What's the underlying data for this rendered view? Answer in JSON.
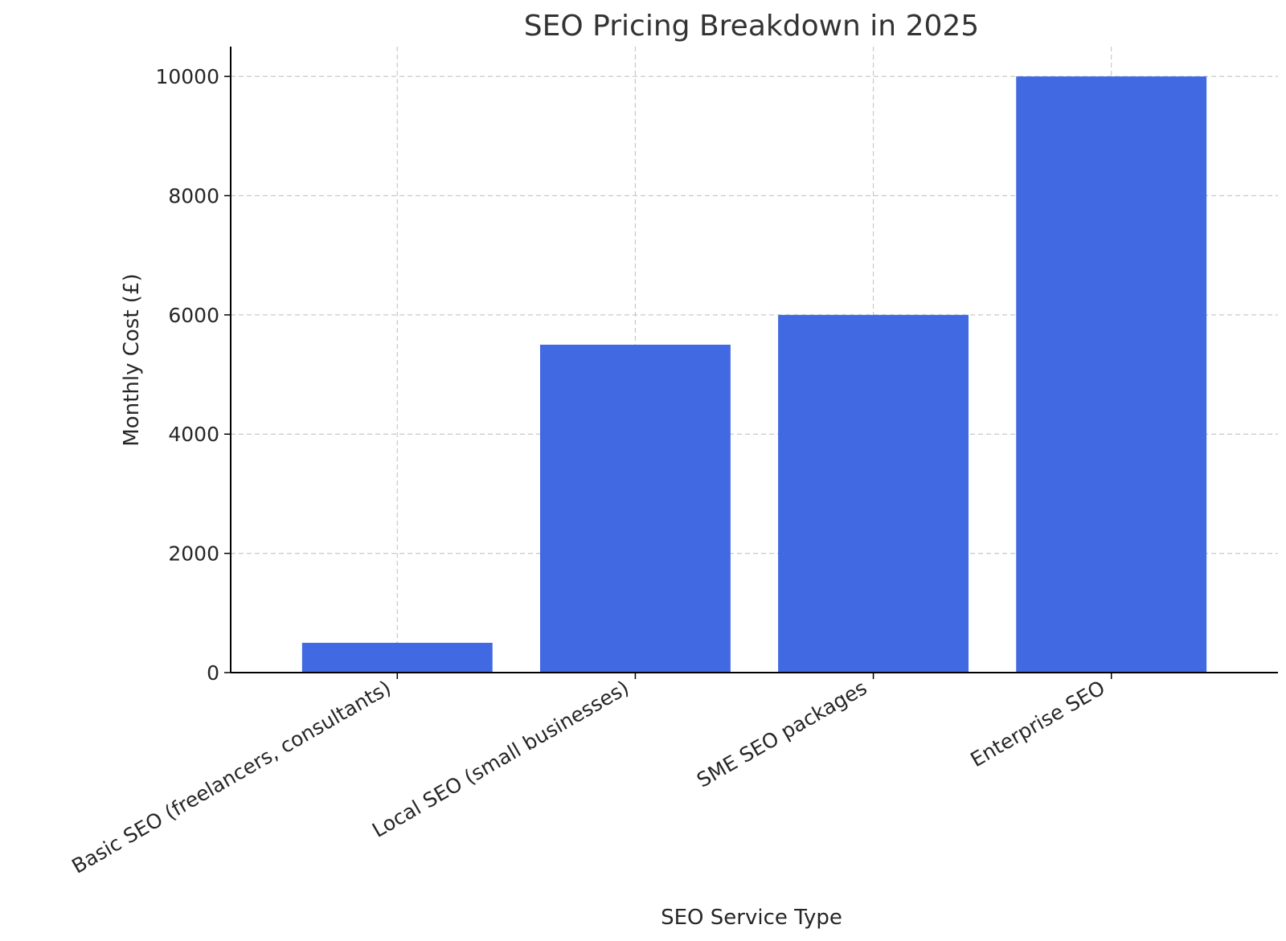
{
  "chart_data": {
    "type": "bar",
    "title": "SEO Pricing Breakdown in 2025",
    "xlabel": "SEO Service Type",
    "ylabel": "Monthly Cost (£)",
    "categories": [
      "Basic SEO (freelancers, consultants)",
      "Local SEO (small businesses)",
      "SME SEO packages",
      "Enterprise SEO"
    ],
    "values": [
      500,
      5500,
      6000,
      10000
    ],
    "ylim": [
      0,
      10500
    ],
    "yticks": [
      0,
      2000,
      4000,
      6000,
      8000,
      10000
    ],
    "ytick_labels": [
      "0",
      "2000",
      "4000",
      "6000",
      "8000",
      "10000"
    ],
    "bar_color": "#4169e1",
    "grid": true,
    "legend": "none"
  }
}
